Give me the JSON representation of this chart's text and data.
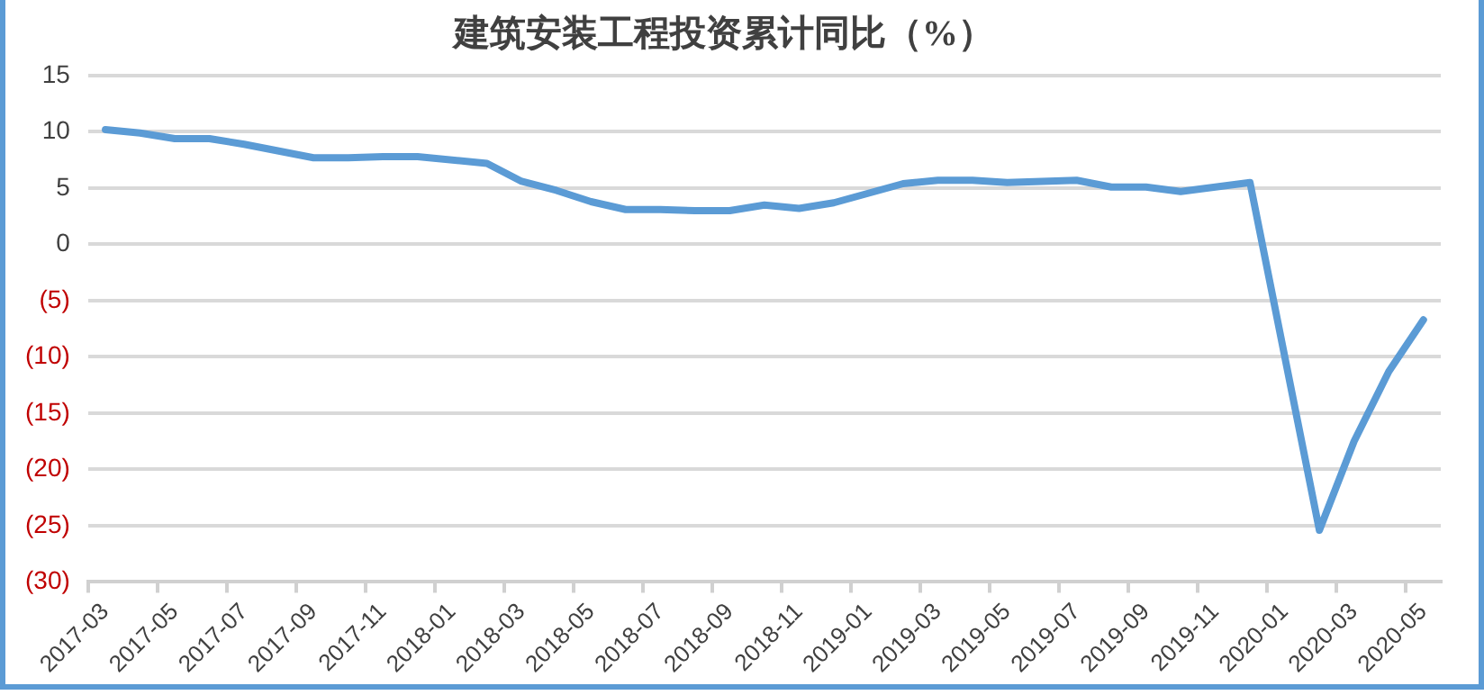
{
  "chart_data": {
    "type": "line",
    "title": "建筑安装工程投资累计同比（%）",
    "categories": [
      "2017-03",
      null,
      "2017-05",
      null,
      "2017-07",
      null,
      "2017-09",
      null,
      "2017-11",
      null,
      "2018-01",
      null,
      "2018-03",
      null,
      "2018-05",
      null,
      "2018-07",
      null,
      "2018-09",
      null,
      "2018-11",
      null,
      "2019-01",
      null,
      "2019-03",
      null,
      "2019-05",
      null,
      "2019-07",
      null,
      "2019-09",
      null,
      "2019-11",
      null,
      "2020-01",
      null,
      "2020-03",
      null,
      "2020-05"
    ],
    "series": [
      {
        "color": "#5b9bd5",
        "values": [
          10.2,
          9.9,
          9.4,
          9.4,
          8.9,
          8.3,
          7.7,
          7.7,
          7.8,
          7.8,
          null,
          7.2,
          5.6,
          4.8,
          3.8,
          3.1,
          3.1,
          3.0,
          3.0,
          3.5,
          3.2,
          3.7,
          null,
          5.4,
          5.7,
          5.7,
          5.5,
          5.6,
          5.7,
          5.1,
          5.1,
          4.7,
          5.1,
          5.5,
          null,
          -25.4,
          -17.5,
          -11.3,
          -6.7
        ]
      }
    ],
    "ylim": [
      -30,
      15
    ],
    "yticks": [
      15,
      10,
      5,
      0,
      {
        "value": -5,
        "label": "(5)"
      },
      {
        "value": -10,
        "label": "(10)"
      },
      {
        "value": -15,
        "label": "(15)"
      },
      {
        "value": -20,
        "label": "(20)"
      },
      {
        "value": -25,
        "label": "(25)"
      },
      {
        "value": -30,
        "label": "(30)"
      }
    ],
    "grid": "y",
    "legend": false,
    "marker": "none",
    "line_style": "solid"
  }
}
